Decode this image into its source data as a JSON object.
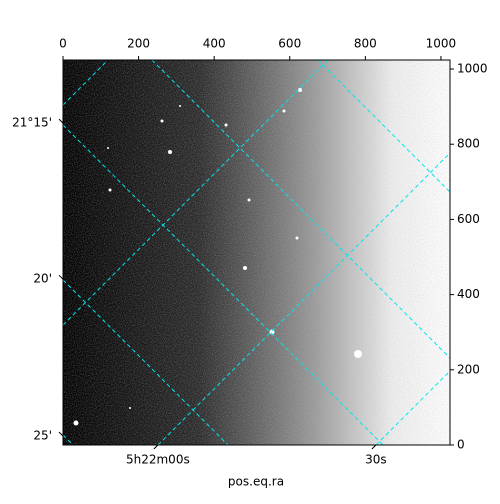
{
  "chart_data": {
    "type": "image",
    "x_label": "pos.eq.ra",
    "xlim": [
      0,
      1024
    ],
    "ylim": [
      0,
      1024
    ],
    "xticks": [
      0,
      200,
      400,
      600,
      800,
      1000
    ],
    "yticks": [
      0,
      200,
      400,
      600,
      800,
      1000
    ],
    "dec_ticks": [
      {
        "value": 856,
        "label": "21°15'"
      },
      {
        "value": 441,
        "label": "20'"
      },
      {
        "value": 24,
        "label": "25'"
      }
    ],
    "ra_ticks": [
      {
        "value": 251,
        "label": "5h22m00s"
      },
      {
        "value": 828,
        "label": "30s"
      }
    ],
    "grid_color": "#00e5ee"
  }
}
